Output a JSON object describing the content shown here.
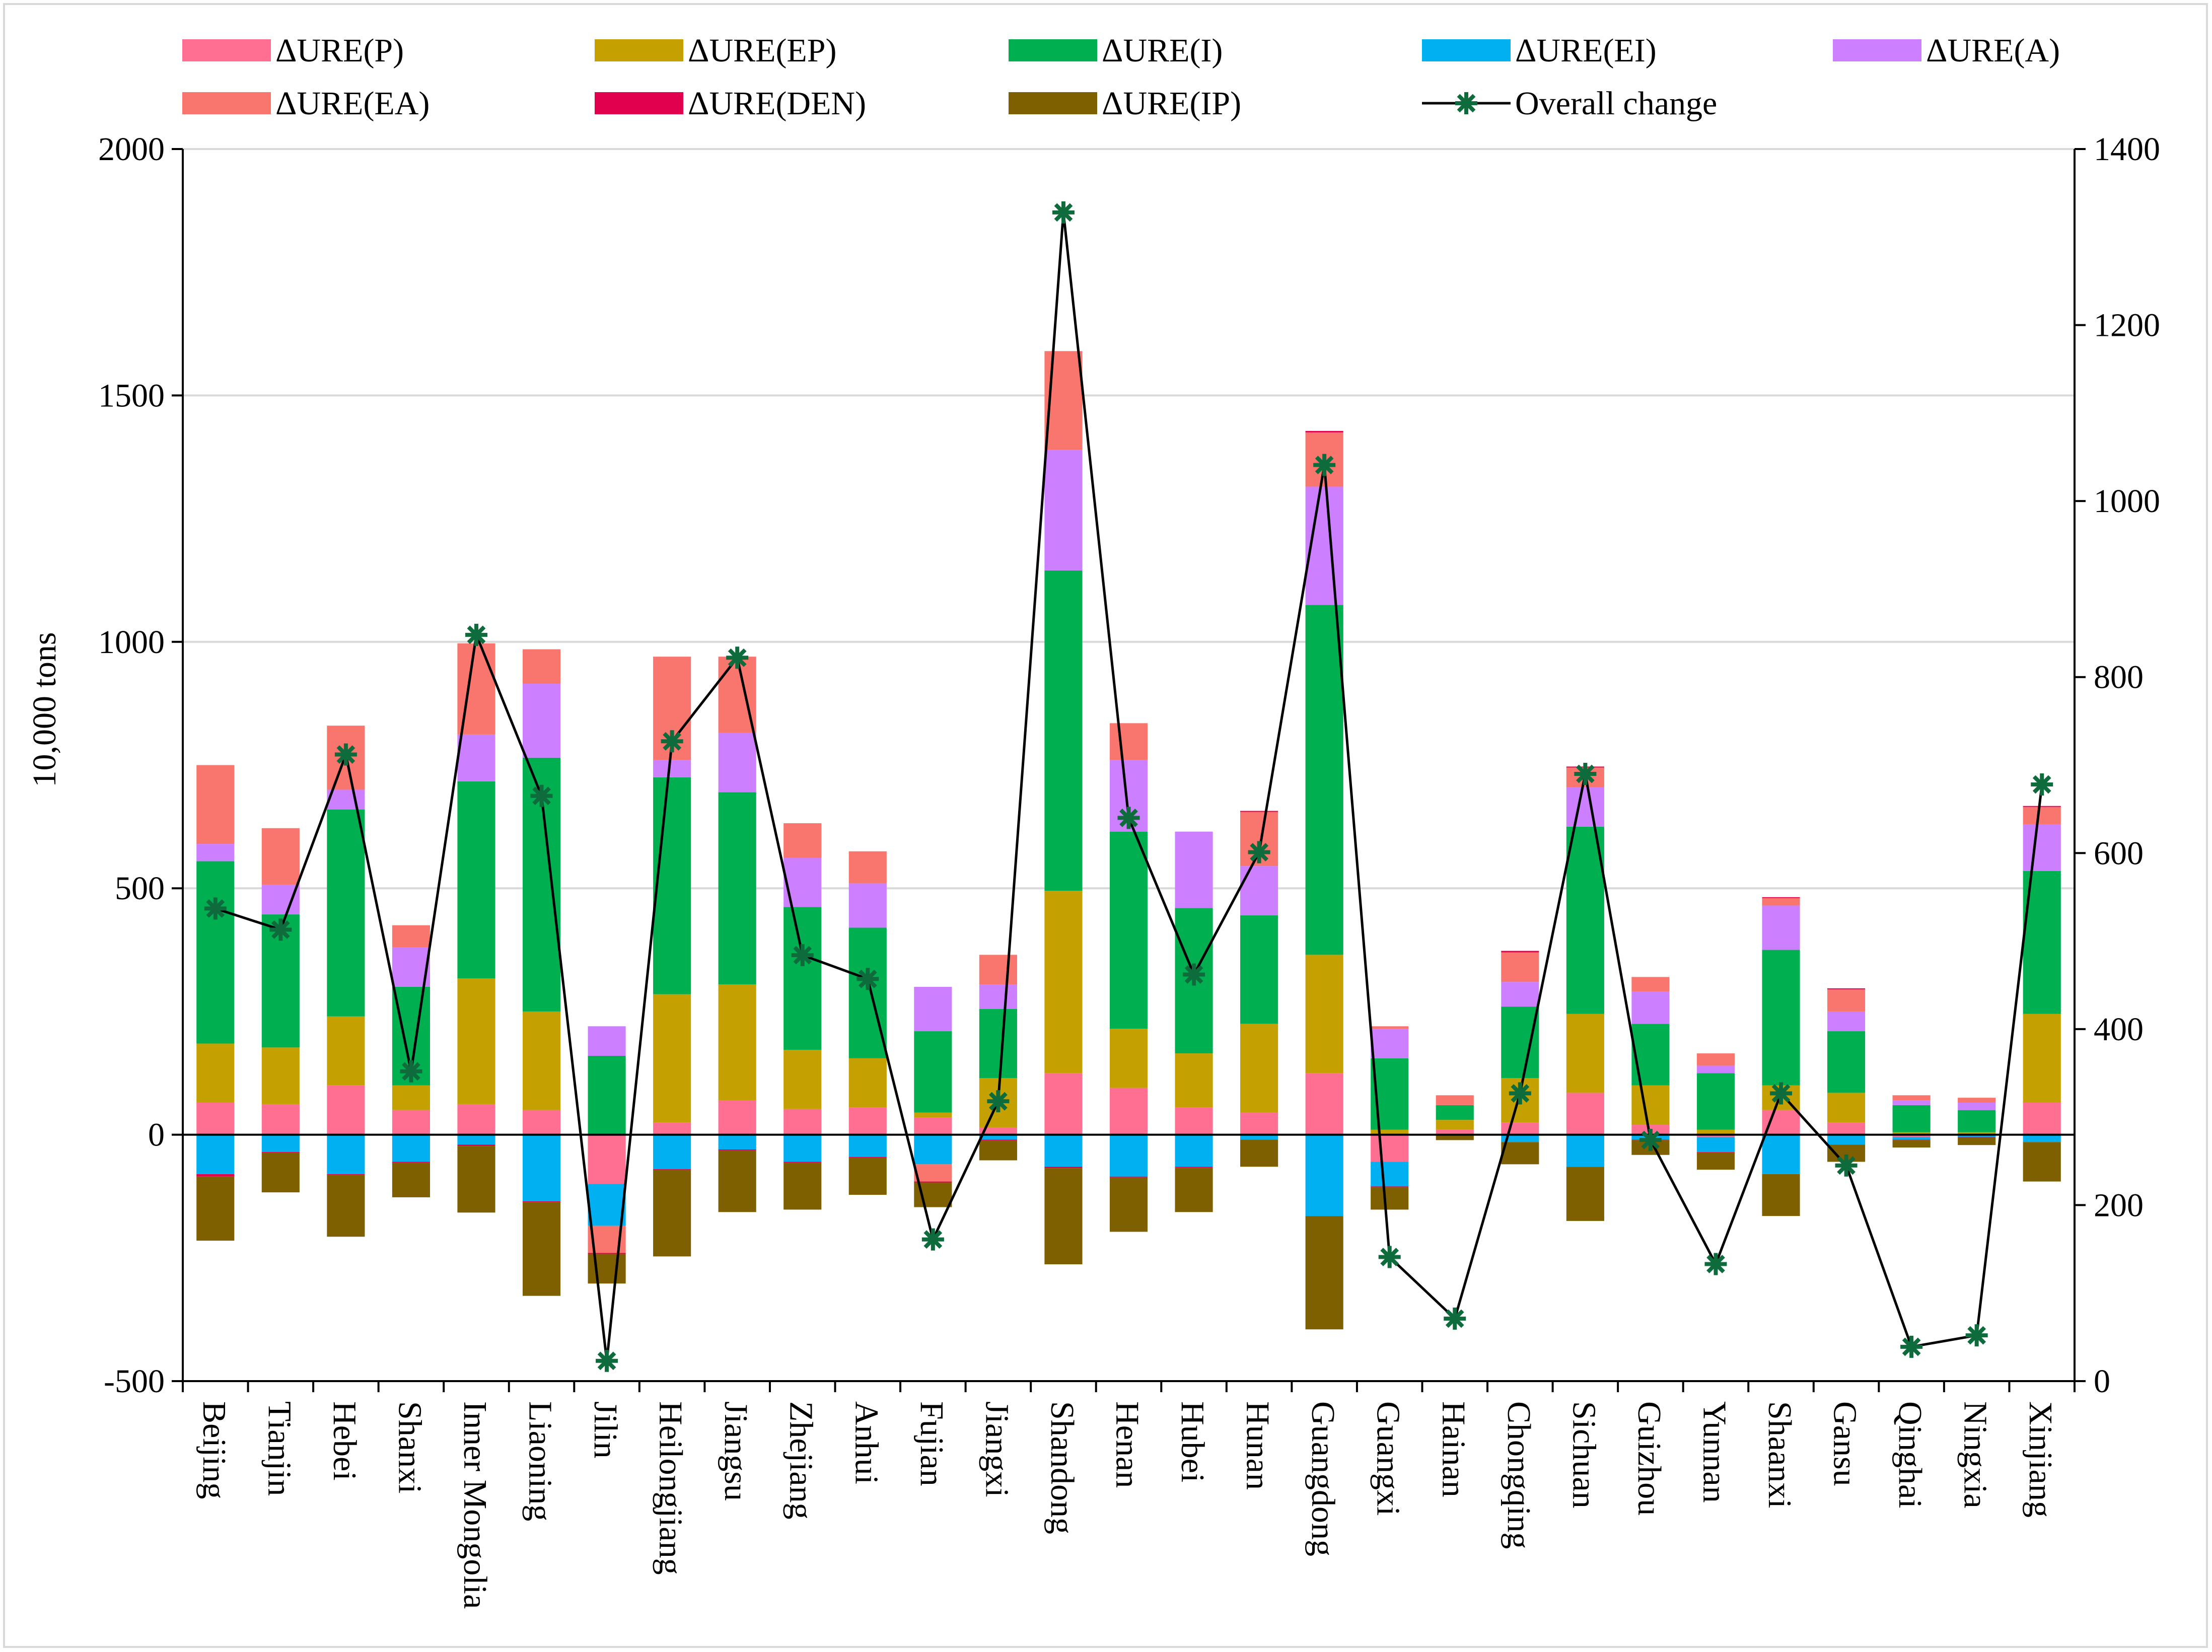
{
  "chart_data": {
    "type": "bar",
    "stacked": true,
    "ylabel": "10,000 tons",
    "ylim": [
      -500,
      2000
    ],
    "yticks": [
      -500,
      0,
      500,
      1000,
      1500,
      2000
    ],
    "y2lim": [
      0,
      1400
    ],
    "y2ticks": [
      0,
      200,
      400,
      600,
      800,
      1000,
      1200,
      1400
    ],
    "legend_position": "top",
    "categories": [
      "Beijing",
      "Tianjin",
      "Hebei",
      "Shanxi",
      "Inner Mongolia",
      "Liaoning",
      "Jilin",
      "Heilongjiang",
      "Jiangsu",
      "Zhejiang",
      "Anhui",
      "Fujian",
      "Jiangxi",
      "Shandong",
      "Henan",
      "Hubei",
      "Hunan",
      "Guangdong",
      "Guangxi",
      "Hainan",
      "Chongqing",
      "Sichuan",
      "Guizhou",
      "Yunnan",
      "Shaanxi",
      "Gansu",
      "Qinghai",
      "Ningxia",
      "Xinjiang"
    ],
    "series": [
      {
        "name": "ΔURE(P)",
        "color": "#ff6f91",
        "values": [
          65,
          62,
          100,
          50,
          62,
          50,
          -100,
          25,
          70,
          52,
          55,
          35,
          15,
          125,
          95,
          55,
          45,
          125,
          -55,
          10,
          25,
          85,
          20,
          -5,
          50,
          25,
          -5,
          0,
          65
        ]
      },
      {
        "name": "ΔURE(EP)",
        "color": "#c4a000",
        "values": [
          120,
          115,
          140,
          50,
          255,
          200,
          0,
          260,
          235,
          120,
          100,
          10,
          100,
          370,
          120,
          110,
          180,
          240,
          10,
          20,
          90,
          160,
          80,
          10,
          50,
          60,
          5,
          5,
          180
        ]
      },
      {
        "name": "ΔURE(I)",
        "color": "#00b050",
        "values": [
          370,
          270,
          420,
          200,
          400,
          515,
          160,
          440,
          390,
          290,
          265,
          165,
          140,
          650,
          400,
          295,
          220,
          710,
          145,
          30,
          145,
          380,
          125,
          115,
          275,
          125,
          55,
          45,
          290
        ]
      },
      {
        "name": "ΔURE(EI)",
        "color": "#00b0f0",
        "values": [
          -80,
          -35,
          -80,
          -55,
          -20,
          -135,
          -85,
          -70,
          -30,
          -55,
          -45,
          -60,
          -10,
          -65,
          -85,
          -65,
          -10,
          -165,
          -50,
          0,
          -15,
          -65,
          -10,
          -30,
          -80,
          -20,
          -5,
          -5,
          -15
        ]
      },
      {
        "name": "ΔURE(A)",
        "color": "#cc80ff",
        "values": [
          35,
          60,
          40,
          80,
          95,
          150,
          60,
          35,
          120,
          100,
          90,
          90,
          50,
          245,
          145,
          155,
          100,
          240,
          60,
          0,
          50,
          80,
          65,
          15,
          90,
          40,
          10,
          15,
          95
        ]
      },
      {
        "name": "ΔURE(EA)",
        "color": "#f8766d",
        "values": [
          160,
          115,
          130,
          45,
          185,
          70,
          -55,
          210,
          155,
          70,
          65,
          -35,
          60,
          200,
          75,
          0,
          110,
          110,
          5,
          20,
          60,
          40,
          30,
          25,
          15,
          45,
          10,
          10,
          35
        ]
      },
      {
        "name": "ΔURE(DEN)",
        "color": "#e0004d",
        "values": [
          -5,
          -2,
          -2,
          -2,
          -3,
          -2,
          -2,
          -2,
          -2,
          -2,
          -2,
          -2,
          -2,
          -3,
          -2,
          -2,
          2,
          3,
          -2,
          -1,
          3,
          2,
          -1,
          -1,
          2,
          2,
          -1,
          -1,
          2
        ]
      },
      {
        "name": "ΔURE(IP)",
        "color": "#7f6000",
        "values": [
          -130,
          -80,
          -125,
          -70,
          -135,
          -190,
          -60,
          -175,
          -125,
          -95,
          -75,
          -50,
          -40,
          -195,
          -110,
          -90,
          -55,
          -230,
          -45,
          -10,
          -45,
          -110,
          -30,
          -35,
          -85,
          -35,
          -15,
          -15,
          -80
        ]
      }
    ],
    "line_series": {
      "name": "Overall change",
      "axis": "right",
      "color": "#000000",
      "marker_color": "#0e6b3c",
      "values": [
        537,
        513,
        712,
        352,
        848,
        665,
        23,
        727,
        822,
        484,
        457,
        161,
        318,
        1328,
        640,
        462,
        601,
        1041,
        141,
        71,
        327,
        690,
        274,
        133,
        327,
        245,
        39,
        52,
        678
      ]
    }
  }
}
